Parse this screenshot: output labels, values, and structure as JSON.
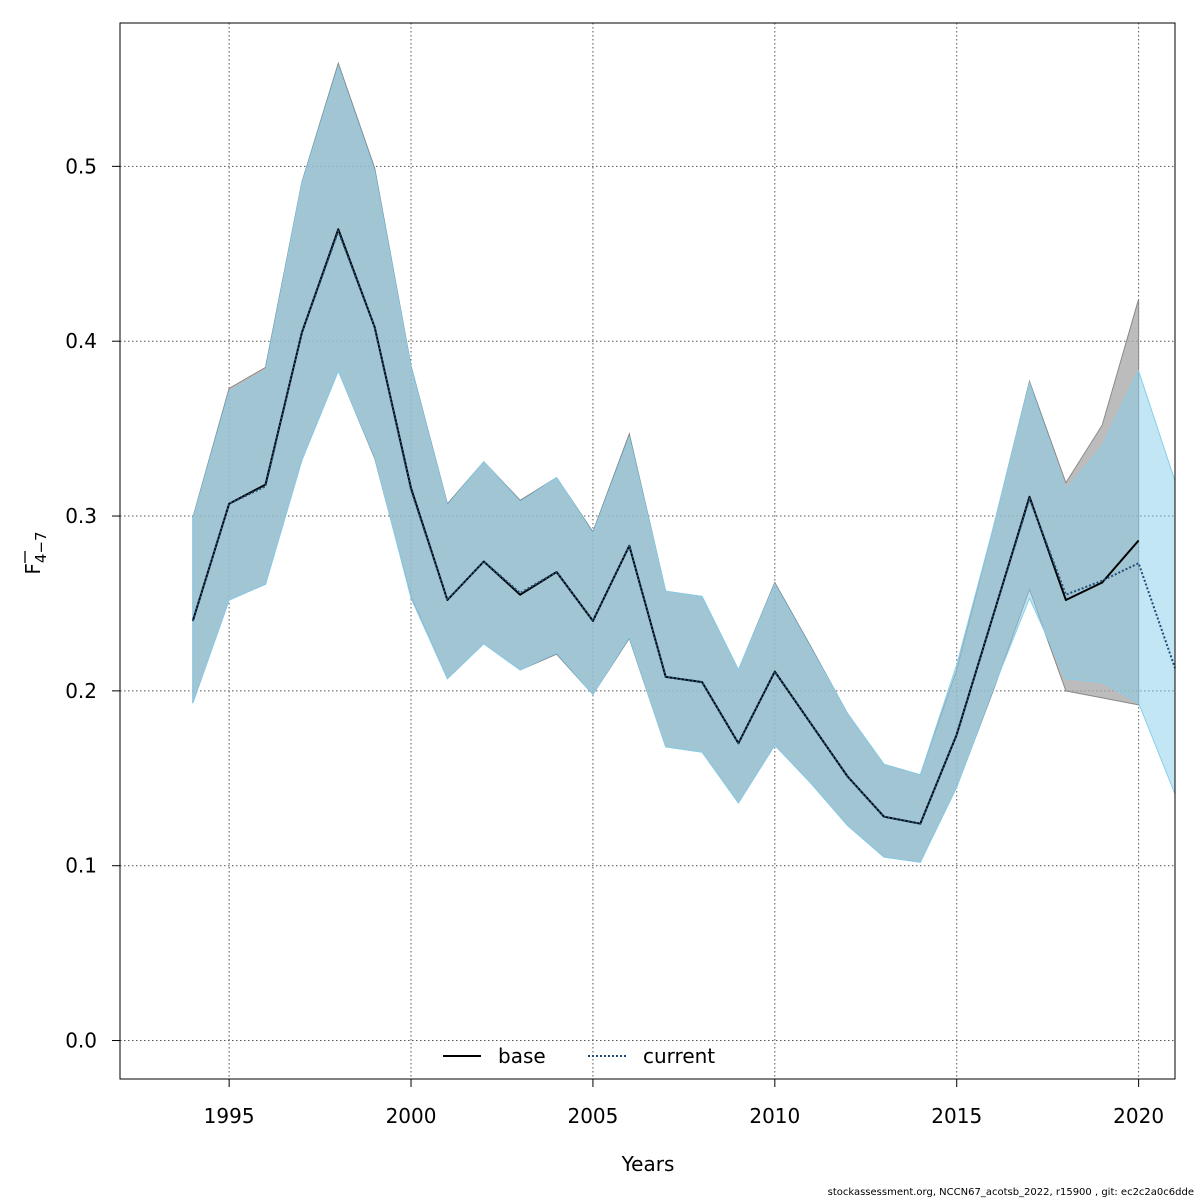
{
  "chart_data": {
    "type": "line",
    "xlabel": "Years",
    "ylabel": "F",
    "ylabel_subscript": "4−7",
    "xlim": [
      1992,
      2021
    ],
    "ylim": [
      -0.022,
      0.582
    ],
    "x_ticks": [
      1995,
      2000,
      2005,
      2010,
      2015,
      2020
    ],
    "y_ticks": [
      0.0,
      0.1,
      0.2,
      0.3,
      0.4,
      0.5
    ],
    "y_tick_labels": [
      "0.0",
      "0.1",
      "0.2",
      "0.3",
      "0.4",
      "0.5"
    ],
    "grid": true,
    "legend_position": "bottom-center",
    "series": [
      {
        "name": "base",
        "color": "#000000",
        "line_style": "solid",
        "band_color": "#a0a0a0",
        "x": [
          1994,
          1995,
          1996,
          1997,
          1998,
          1999,
          2000,
          2001,
          2002,
          2003,
          2004,
          2005,
          2006,
          2007,
          2008,
          2009,
          2010,
          2011,
          2012,
          2013,
          2014,
          2015,
          2016,
          2017,
          2018,
          2019,
          2020
        ],
        "values": [
          0.24,
          0.307,
          0.318,
          0.405,
          0.464,
          0.408,
          0.316,
          0.252,
          0.274,
          0.255,
          0.268,
          0.24,
          0.283,
          0.208,
          0.205,
          0.17,
          0.211,
          0.181,
          0.151,
          0.128,
          0.124,
          0.175,
          0.243,
          0.311,
          0.252,
          0.262,
          0.286
        ],
        "lower": [
          0.193,
          0.252,
          0.261,
          0.332,
          0.383,
          0.333,
          0.254,
          0.207,
          0.227,
          0.212,
          0.221,
          0.198,
          0.23,
          0.168,
          0.165,
          0.136,
          0.169,
          0.147,
          0.123,
          0.105,
          0.102,
          0.145,
          0.2,
          0.258,
          0.2,
          0.196,
          0.192
        ],
        "upper": [
          0.299,
          0.373,
          0.385,
          0.491,
          0.559,
          0.499,
          0.386,
          0.307,
          0.331,
          0.309,
          0.322,
          0.291,
          0.347,
          0.257,
          0.254,
          0.212,
          0.262,
          0.225,
          0.187,
          0.158,
          0.152,
          0.212,
          0.293,
          0.377,
          0.319,
          0.352,
          0.424
        ]
      },
      {
        "name": "current",
        "color": "#1f4e79",
        "line_style": "dotted",
        "band_color": "#87ceeb",
        "x": [
          1994,
          1995,
          1996,
          1997,
          1998,
          1999,
          2000,
          2001,
          2002,
          2003,
          2004,
          2005,
          2006,
          2007,
          2008,
          2009,
          2010,
          2011,
          2012,
          2013,
          2014,
          2015,
          2016,
          2017,
          2018,
          2019,
          2020,
          2021
        ],
        "values": [
          0.24,
          0.307,
          0.317,
          0.405,
          0.463,
          0.408,
          0.315,
          0.252,
          0.274,
          0.256,
          0.268,
          0.24,
          0.283,
          0.208,
          0.205,
          0.17,
          0.211,
          0.181,
          0.151,
          0.128,
          0.124,
          0.175,
          0.243,
          0.31,
          0.255,
          0.263,
          0.273,
          0.213
        ],
        "lower": [
          0.193,
          0.252,
          0.261,
          0.332,
          0.383,
          0.334,
          0.253,
          0.207,
          0.227,
          0.212,
          0.222,
          0.198,
          0.231,
          0.168,
          0.165,
          0.136,
          0.169,
          0.147,
          0.123,
          0.105,
          0.102,
          0.145,
          0.201,
          0.253,
          0.207,
          0.205,
          0.193,
          0.141
        ],
        "upper": [
          0.298,
          0.371,
          0.383,
          0.49,
          0.557,
          0.497,
          0.385,
          0.306,
          0.331,
          0.308,
          0.322,
          0.29,
          0.345,
          0.257,
          0.254,
          0.212,
          0.261,
          0.224,
          0.187,
          0.158,
          0.152,
          0.215,
          0.293,
          0.376,
          0.315,
          0.34,
          0.383,
          0.32
        ]
      }
    ]
  },
  "footer": {
    "text": "stockassessment.org, NCCN67_acotsb_2022, r15900 , git: ec2c2a0c6dde"
  }
}
